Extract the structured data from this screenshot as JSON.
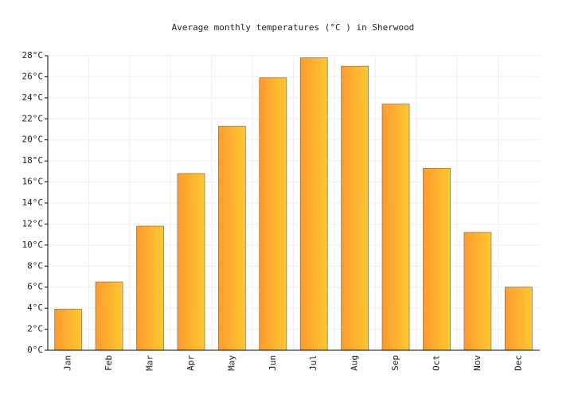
{
  "chart_data": {
    "type": "bar",
    "title": "Average monthly temperatures (°C ) in Sherwood",
    "categories": [
      "Jan",
      "Feb",
      "Mar",
      "Apr",
      "May",
      "Jun",
      "Jul",
      "Aug",
      "Sep",
      "Oct",
      "Nov",
      "Dec"
    ],
    "values": [
      3.9,
      6.5,
      11.8,
      16.8,
      21.3,
      25.9,
      27.8,
      27.0,
      23.4,
      17.3,
      11.2,
      6.0
    ],
    "colors": [
      "#ff9a2e",
      "#ffc832"
    ],
    "ylim": [
      0,
      28
    ],
    "yticks": [
      {
        "value": 0,
        "label": "0°C"
      },
      {
        "value": 2,
        "label": "2°C"
      },
      {
        "value": 4,
        "label": "4°C"
      },
      {
        "value": 6,
        "label": "6°C"
      },
      {
        "value": 8,
        "label": "8°C"
      },
      {
        "value": 10,
        "label": "10°C"
      },
      {
        "value": 12,
        "label": "12°C"
      },
      {
        "value": 14,
        "label": "14°C"
      },
      {
        "value": 16,
        "label": "16°C"
      },
      {
        "value": 18,
        "label": "18°C"
      },
      {
        "value": 20,
        "label": "20°C"
      },
      {
        "value": 22,
        "label": "22°C"
      },
      {
        "value": 24,
        "label": "24°C"
      },
      {
        "value": 26,
        "label": "26°C"
      },
      {
        "value": 28,
        "label": "28°C"
      }
    ],
    "grid": true
  }
}
